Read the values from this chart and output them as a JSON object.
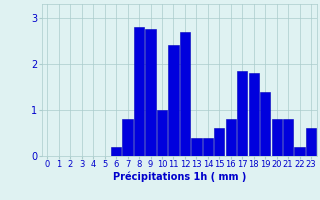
{
  "hours": [
    0,
    1,
    2,
    3,
    4,
    5,
    6,
    7,
    8,
    9,
    10,
    11,
    12,
    13,
    14,
    15,
    16,
    17,
    18,
    19,
    20,
    21,
    22,
    23
  ],
  "values": [
    0,
    0,
    0,
    0,
    0,
    0,
    0.2,
    0.8,
    2.8,
    2.75,
    1.0,
    2.4,
    2.7,
    0.4,
    0.4,
    0.6,
    0.8,
    1.85,
    1.8,
    1.4,
    0.8,
    0.8,
    0.2,
    0.6
  ],
  "bar_color": "#0000dd",
  "bar_edge_color": "#0000bb",
  "background_color": "#dff2f2",
  "grid_color": "#aacccc",
  "xlabel": "Précipitations 1h ( mm )",
  "ylim": [
    0,
    3.3
  ],
  "yticks": [
    0,
    1,
    2,
    3
  ],
  "xlim": [
    -0.5,
    23.5
  ],
  "tick_color": "#0000cc",
  "xlabel_fontsize": 7,
  "tick_fontsize": 6
}
